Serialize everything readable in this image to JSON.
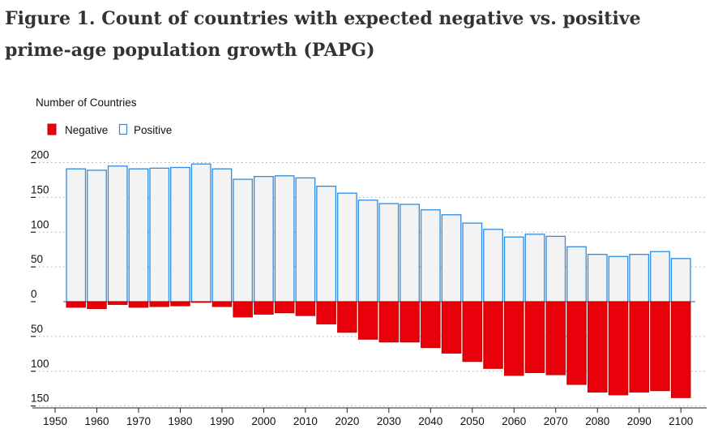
{
  "figure": {
    "title": "Figure 1. Count of countries with expected negative vs. positive prime-age population growth (PAPG)"
  },
  "colors": {
    "negative_fill": "#e8000b",
    "negative_stroke": "#c60000",
    "positive_fill": "#f3f3f3",
    "positive_stroke": "#2f8be3",
    "grid": "#aaaaaa"
  },
  "chart_data": {
    "type": "bar",
    "title": "",
    "ylabel": "Number of Countries",
    "xlabel": "",
    "legend": {
      "position": "top-left",
      "items": [
        "Negative",
        "Positive"
      ]
    },
    "grid": "horizontal dotted",
    "ylim": [
      -150,
      200
    ],
    "y_ticks": [
      {
        "value": 200,
        "label": "200"
      },
      {
        "value": 150,
        "label": "150"
      },
      {
        "value": 100,
        "label": "100"
      },
      {
        "value": 50,
        "label": "50"
      },
      {
        "value": 0,
        "label": "0"
      },
      {
        "value": -50,
        "label": "50"
      },
      {
        "value": -100,
        "label": "100"
      },
      {
        "value": -150,
        "label": "150"
      }
    ],
    "x_ticks": [
      1950,
      1960,
      1970,
      1980,
      1990,
      2000,
      2010,
      2020,
      2030,
      2040,
      2050,
      2060,
      2070,
      2080,
      2090,
      2100
    ],
    "years": [
      1955,
      1960,
      1965,
      1970,
      1975,
      1980,
      1985,
      1990,
      1995,
      2000,
      2005,
      2010,
      2015,
      2020,
      2025,
      2030,
      2035,
      2040,
      2045,
      2050,
      2055,
      2060,
      2065,
      2070,
      2075,
      2080,
      2085,
      2090,
      2095,
      2100
    ],
    "series": [
      {
        "name": "Positive",
        "values": [
          191,
          189,
          195,
          191,
          192,
          193,
          198,
          191,
          176,
          180,
          181,
          178,
          166,
          156,
          146,
          141,
          140,
          132,
          125,
          113,
          104,
          93,
          97,
          94,
          79,
          68,
          65,
          68,
          72,
          62
        ]
      },
      {
        "name": "Negative",
        "values": [
          8,
          10,
          4,
          8,
          7,
          6,
          1,
          7,
          22,
          18,
          16,
          20,
          32,
          44,
          54,
          58,
          58,
          66,
          74,
          86,
          96,
          106,
          102,
          105,
          119,
          130,
          134,
          130,
          128,
          138
        ]
      }
    ]
  }
}
